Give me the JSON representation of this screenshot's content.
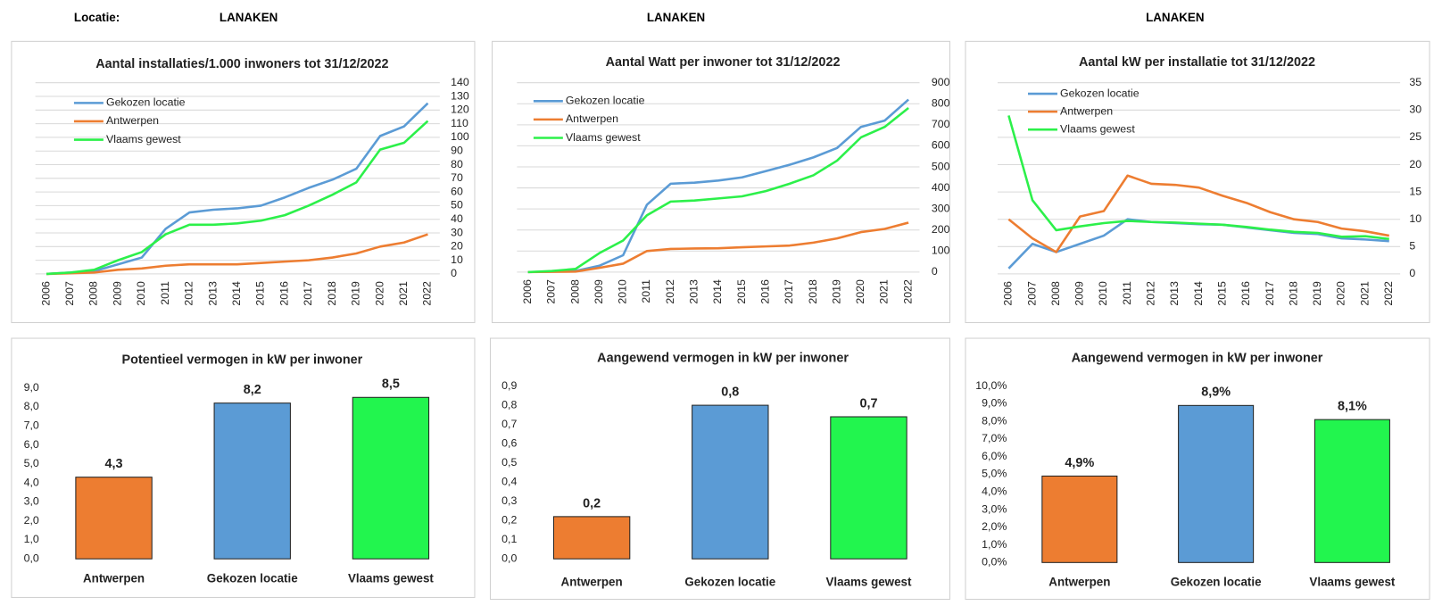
{
  "header": {
    "label": "Locatie:",
    "locations": [
      "LANAKEN",
      "LANAKEN",
      "LANAKEN"
    ]
  },
  "chart_data": [
    {
      "type": "line",
      "title": "Aantal installaties/1.000  inwoners tot 31/12/2022",
      "yaxis_position": "right",
      "grid": true,
      "legend": "upper left",
      "categories": [
        "2006",
        "2007",
        "2008",
        "2009",
        "2010",
        "2011",
        "2012",
        "2013",
        "2014",
        "2015",
        "2016",
        "2017",
        "2018",
        "2019",
        "2020",
        "2021",
        "2022"
      ],
      "ylim": [
        0,
        140
      ],
      "yticks": [
        0,
        10,
        20,
        30,
        40,
        50,
        60,
        70,
        80,
        90,
        100,
        110,
        120,
        130,
        140
      ],
      "series": [
        {
          "name": "Gekozen locatie",
          "color": "#5b9bd5",
          "values": [
            0,
            1,
            2,
            7,
            12,
            33,
            45,
            47,
            48,
            50,
            56,
            63,
            69,
            77,
            101,
            108,
            125
          ]
        },
        {
          "name": "Antwerpen",
          "color": "#ed7d31",
          "values": [
            0,
            0.5,
            1,
            3,
            4,
            6,
            7,
            7,
            7,
            8,
            9,
            10,
            12,
            15,
            20,
            23,
            29
          ]
        },
        {
          "name": "Vlaams gewest",
          "color": "#2cf04a",
          "values": [
            0,
            1,
            3,
            10,
            16,
            29,
            36,
            36,
            37,
            39,
            43,
            50,
            58,
            67,
            91,
            96,
            112
          ]
        }
      ]
    },
    {
      "type": "line",
      "title": "Aantal Watt per inwoner tot 31/12/2022",
      "yaxis_position": "right",
      "grid": true,
      "legend": "upper left",
      "categories": [
        "2006",
        "2007",
        "2008",
        "2009",
        "2010",
        "2011",
        "2012",
        "2013",
        "2014",
        "2015",
        "2016",
        "2017",
        "2018",
        "2019",
        "2020",
        "2021",
        "2022"
      ],
      "ylim": [
        0,
        900
      ],
      "yticks": [
        0,
        100,
        200,
        300,
        400,
        500,
        600,
        700,
        800,
        900
      ],
      "series": [
        {
          "name": "Gekozen locatie",
          "color": "#5b9bd5",
          "values": [
            0,
            2,
            5,
            30,
            80,
            320,
            420,
            425,
            435,
            450,
            480,
            510,
            545,
            590,
            690,
            720,
            820
          ]
        },
        {
          "name": "Antwerpen",
          "color": "#ed7d31",
          "values": [
            0,
            1,
            2,
            20,
            40,
            100,
            110,
            112,
            113,
            118,
            122,
            126,
            140,
            160,
            190,
            205,
            235
          ]
        },
        {
          "name": "Vlaams gewest",
          "color": "#2cf04a",
          "values": [
            0,
            5,
            15,
            90,
            150,
            270,
            335,
            340,
            350,
            360,
            385,
            420,
            460,
            530,
            640,
            690,
            780
          ]
        }
      ]
    },
    {
      "type": "line",
      "title": "Aantal kW per installatie  tot 31/12/2022",
      "yaxis_position": "right",
      "grid": true,
      "legend": "upper left",
      "categories": [
        "2006",
        "2007",
        "2008",
        "2009",
        "2010",
        "2011",
        "2012",
        "2013",
        "2014",
        "2015",
        "2016",
        "2017",
        "2018",
        "2019",
        "2020",
        "2021",
        "2022"
      ],
      "ylim": [
        0,
        35
      ],
      "yticks": [
        0,
        5,
        10,
        15,
        20,
        25,
        30,
        35
      ],
      "series": [
        {
          "name": "Gekozen locatie",
          "color": "#5b9bd5",
          "values": [
            1,
            5.5,
            4,
            5.5,
            7,
            10,
            9.5,
            9.3,
            9.1,
            9,
            8.5,
            8,
            7.5,
            7.3,
            6.5,
            6.3,
            6
          ]
        },
        {
          "name": "Antwerpen",
          "color": "#ed7d31",
          "values": [
            10,
            6.5,
            4,
            10.5,
            11.5,
            18,
            16.5,
            16.3,
            15.8,
            14.3,
            13,
            11.3,
            10,
            9.5,
            8.3,
            7.8,
            7
          ]
        },
        {
          "name": "Vlaams gewest",
          "color": "#2cf04a",
          "values": [
            29,
            13.5,
            8,
            8.7,
            9.3,
            9.7,
            9.5,
            9.4,
            9.2,
            9,
            8.6,
            8.1,
            7.7,
            7.5,
            6.8,
            6.9,
            6.4
          ]
        }
      ]
    },
    {
      "type": "bar",
      "title": "Potentieel vermogen in kW per inwoner",
      "grid": false,
      "categories": [
        "Antwerpen",
        "Gekozen locatie",
        "Vlaams gewest"
      ],
      "colors": [
        "#ed7d31",
        "#5b9bd5",
        "#22f54e"
      ],
      "values": [
        4.3,
        8.2,
        8.5
      ],
      "value_labels": [
        "4,3",
        "8,2",
        "8,5"
      ],
      "ylim": [
        0,
        9
      ],
      "yticks": [
        {
          "value": 0,
          "label": "0,0"
        },
        {
          "value": 1,
          "label": "1,0"
        },
        {
          "value": 2,
          "label": "2,0"
        },
        {
          "value": 3,
          "label": "3,0"
        },
        {
          "value": 4,
          "label": "4,0"
        },
        {
          "value": 5,
          "label": "5,0"
        },
        {
          "value": 6,
          "label": "6,0"
        },
        {
          "value": 7,
          "label": "7,0"
        },
        {
          "value": 8,
          "label": "8,0"
        },
        {
          "value": 9,
          "label": "9,0"
        }
      ]
    },
    {
      "type": "bar",
      "title": "Aangewend vermogen in kW per inwoner",
      "grid": false,
      "categories": [
        "Antwerpen",
        "Gekozen locatie",
        "Vlaams gewest"
      ],
      "colors": [
        "#ed7d31",
        "#5b9bd5",
        "#22f54e"
      ],
      "values": [
        0.22,
        0.8,
        0.74
      ],
      "value_labels": [
        "0,2",
        "0,8",
        "0,7"
      ],
      "ylim": [
        0,
        0.9
      ],
      "yticks": [
        {
          "value": 0,
          "label": "0,0"
        },
        {
          "value": 0.1,
          "label": "0,1"
        },
        {
          "value": 0.2,
          "label": "0,2"
        },
        {
          "value": 0.3,
          "label": "0,3"
        },
        {
          "value": 0.4,
          "label": "0,4"
        },
        {
          "value": 0.5,
          "label": "0,5"
        },
        {
          "value": 0.6,
          "label": "0,6"
        },
        {
          "value": 0.7,
          "label": "0,7"
        },
        {
          "value": 0.8,
          "label": "0,8"
        },
        {
          "value": 0.9,
          "label": "0,9"
        }
      ]
    },
    {
      "type": "bar",
      "title": "Aangewend vermogen in kW per inwoner",
      "grid": false,
      "categories": [
        "Antwerpen",
        "Gekozen locatie",
        "Vlaams gewest"
      ],
      "colors": [
        "#ed7d31",
        "#5b9bd5",
        "#22f54e"
      ],
      "values": [
        4.9,
        8.9,
        8.1
      ],
      "value_labels": [
        "4,9%",
        "8,9%",
        "8,1%"
      ],
      "ylim": [
        0,
        10
      ],
      "yticks": [
        {
          "value": 0,
          "label": "0,0%"
        },
        {
          "value": 1,
          "label": "1,0%"
        },
        {
          "value": 2,
          "label": "2,0%"
        },
        {
          "value": 3,
          "label": "3,0%"
        },
        {
          "value": 4,
          "label": "4,0%"
        },
        {
          "value": 5,
          "label": "5,0%"
        },
        {
          "value": 6,
          "label": "6,0%"
        },
        {
          "value": 7,
          "label": "7,0%"
        },
        {
          "value": 8,
          "label": "8,0%"
        },
        {
          "value": 9,
          "label": "9,0%"
        },
        {
          "value": 10,
          "label": "10,0%"
        }
      ]
    }
  ]
}
